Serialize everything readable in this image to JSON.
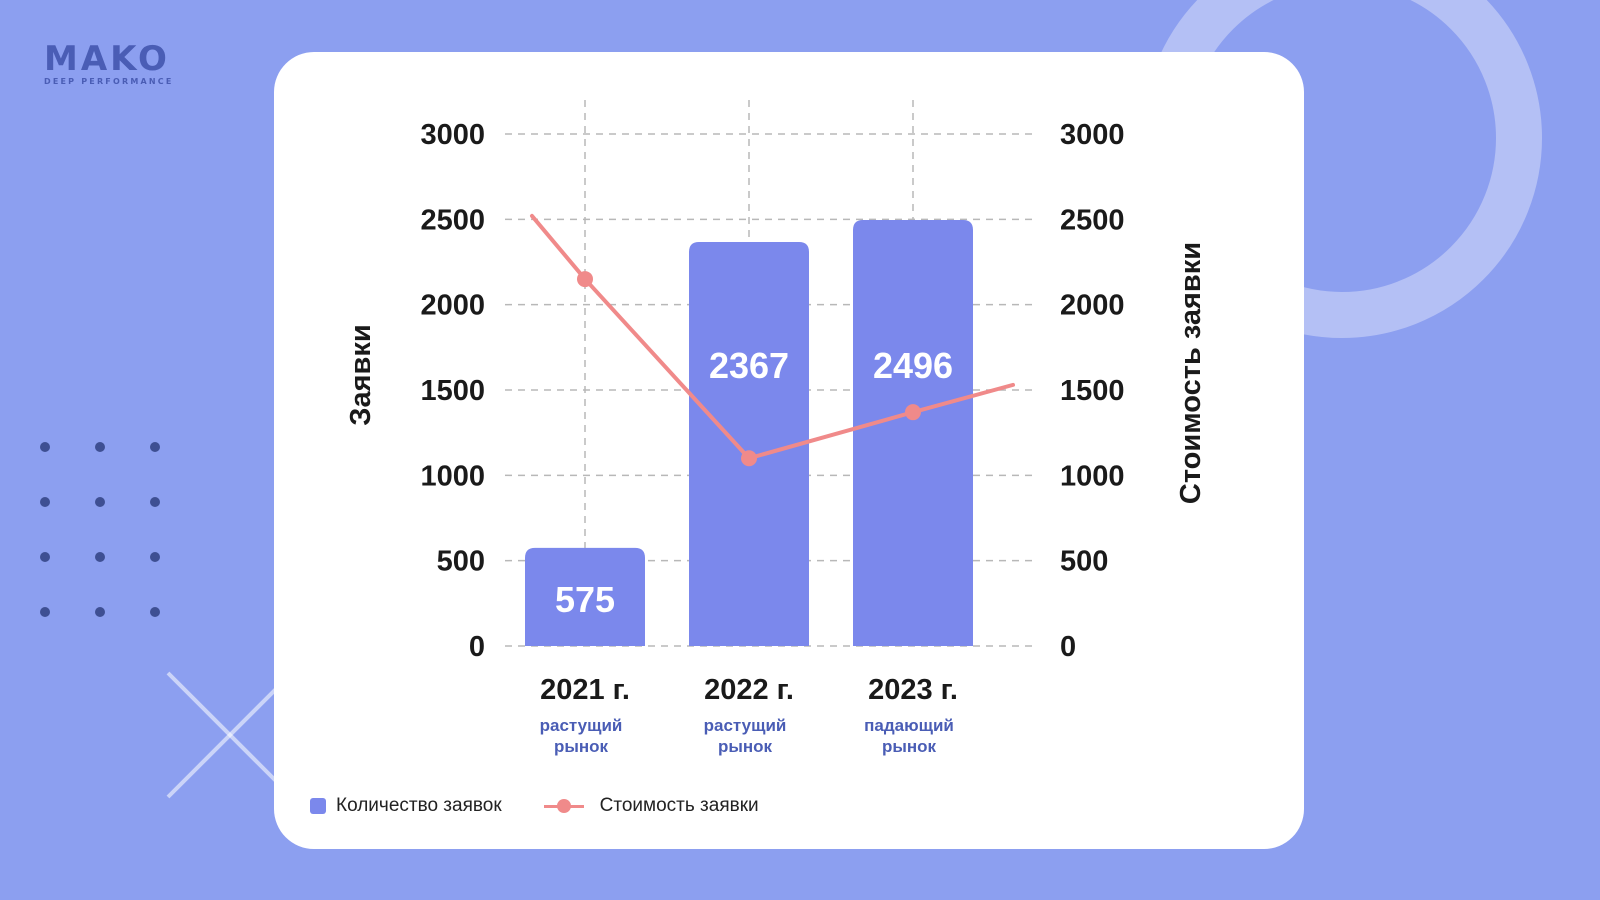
{
  "brand": {
    "name": "MAKO",
    "tagline": "DEEP PERFORMANCE"
  },
  "chart_data": {
    "type": "bar",
    "categories": [
      "2021 г.",
      "2022 г.",
      "2023 г."
    ],
    "subcategories": [
      "растущий\nрынок",
      "растущий\nрынок",
      "падающий\nрынок"
    ],
    "series": [
      {
        "name": "Количество заявок",
        "type": "bar",
        "axis": "left",
        "values": [
          575,
          2367,
          2496
        ],
        "data_labels": [
          "575",
          "2367",
          "2496"
        ],
        "color": "#7b88ec"
      },
      {
        "name": "Стоимость заявки",
        "type": "line",
        "axis": "right",
        "values": [
          2150,
          1100,
          1370
        ],
        "start_value": 2520,
        "end_value": 1530,
        "color": "#f08a8a"
      }
    ],
    "ylabel": "Заявки",
    "ylabel_right": "Стоимость заявки",
    "ylim": [
      0,
      3000
    ],
    "ylim_right": [
      0,
      3000
    ],
    "yticks": [
      0,
      500,
      1000,
      1500,
      2000,
      2500,
      3000
    ],
    "grid": true,
    "legend": "bottom-left"
  },
  "colors": {
    "background": "#8c9ff0",
    "card": "#ffffff",
    "bar": "#7b88ec",
    "line": "#f08a8a",
    "grid": "#b8b8b8",
    "subtitle": "#4a5db5"
  }
}
